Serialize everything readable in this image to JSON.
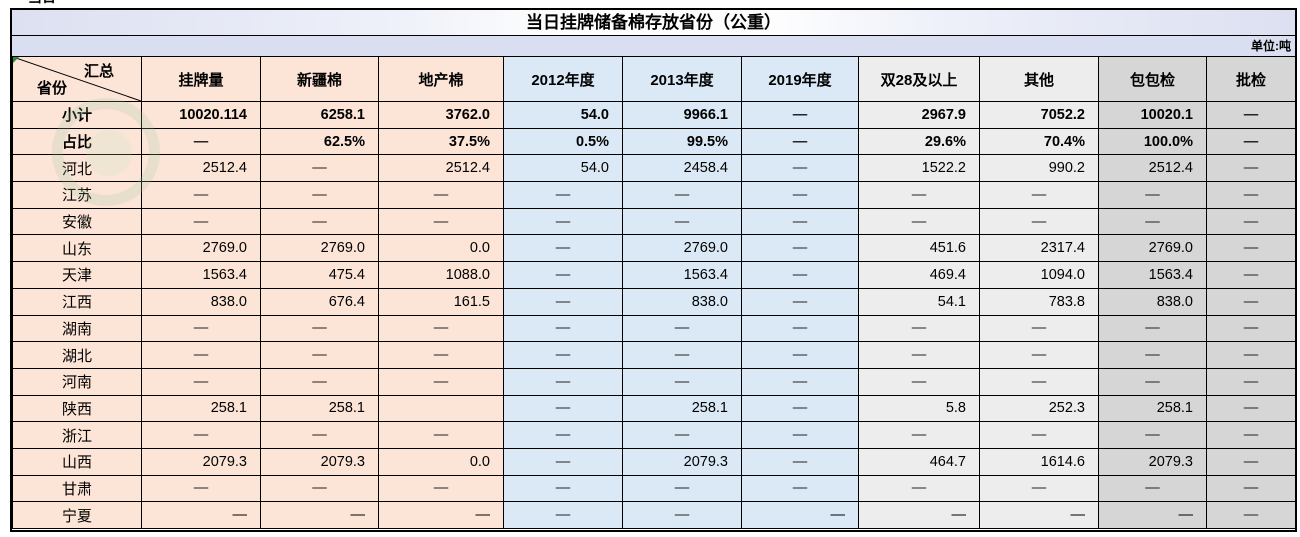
{
  "header": {
    "title": "当日挂牌储备棉存放省份（公重）",
    "unit_note": "单位:吨"
  },
  "corner": {
    "top": "汇总",
    "bottom": "省份"
  },
  "colors": {
    "orange": "#fce4d6",
    "blue": "#dbe9f6",
    "gray": "#ededed",
    "darkgray": "#d6d6d6",
    "band": "#d9def0",
    "border": "#000000",
    "corner_marker_green": "#2e8b3a"
  },
  "table": {
    "columns": [
      {
        "label": "挂牌量",
        "group": "orange"
      },
      {
        "label": "新疆棉",
        "group": "orange"
      },
      {
        "label": "地产棉",
        "group": "orange"
      },
      {
        "label": "2012年度",
        "group": "blue"
      },
      {
        "label": "2013年度",
        "group": "blue"
      },
      {
        "label": "2019年度",
        "group": "blue"
      },
      {
        "label": "双28及以上",
        "group": "gray"
      },
      {
        "label": "其他",
        "group": "gray"
      },
      {
        "label": "包包检",
        "group": "darkgray"
      },
      {
        "label": "批检",
        "group": "darkgray"
      }
    ],
    "rows": [
      {
        "name": "小计",
        "bold": true,
        "values": [
          "10020.114",
          "6258.1",
          "3762.0",
          "54.0",
          "9966.1",
          "—",
          "2967.9",
          "7052.2",
          "10020.1",
          "—"
        ]
      },
      {
        "name": "占比",
        "bold": true,
        "values": [
          "—",
          "62.5%",
          "37.5%",
          "0.5%",
          "99.5%",
          "—",
          "29.6%",
          "70.4%",
          "100.0%",
          "—"
        ]
      },
      {
        "name": "河北",
        "values": [
          "2512.4",
          "—",
          "2512.4",
          "54.0",
          "2458.4",
          "—",
          "1522.2",
          "990.2",
          "2512.4",
          "—"
        ]
      },
      {
        "name": "江苏",
        "values": [
          "—",
          "—",
          "—",
          "—",
          "—",
          "—",
          "—",
          "—",
          "—",
          "—"
        ]
      },
      {
        "name": "安徽",
        "values": [
          "—",
          "—",
          "—",
          "—",
          "—",
          "—",
          "—",
          "—",
          "—",
          "—"
        ]
      },
      {
        "name": "山东",
        "values": [
          "2769.0",
          "2769.0",
          "0.0",
          "—",
          "2769.0",
          "—",
          "451.6",
          "2317.4",
          "2769.0",
          "—"
        ]
      },
      {
        "name": "天津",
        "values": [
          "1563.4",
          "475.4",
          "1088.0",
          "—",
          "1563.4",
          "—",
          "469.4",
          "1094.0",
          "1563.4",
          "—"
        ]
      },
      {
        "name": "江西",
        "values": [
          "838.0",
          "676.4",
          "161.5",
          "—",
          "838.0",
          "—",
          "54.1",
          "783.8",
          "838.0",
          "—"
        ]
      },
      {
        "name": "湖南",
        "values": [
          "—",
          "—",
          "—",
          "—",
          "—",
          "—",
          "—",
          "—",
          "—",
          "—"
        ]
      },
      {
        "name": "湖北",
        "values": [
          "—",
          "—",
          "—",
          "—",
          "—",
          "—",
          "—",
          "—",
          "—",
          "—"
        ]
      },
      {
        "name": "河南",
        "values": [
          "—",
          "—",
          "—",
          "—",
          "—",
          "—",
          "—",
          "—",
          "—",
          "—"
        ]
      },
      {
        "name": "陕西",
        "values": [
          "258.1",
          "258.1",
          "",
          "—",
          "258.1",
          "—",
          "5.8",
          "252.3",
          "258.1",
          "—"
        ]
      },
      {
        "name": "浙江",
        "values": [
          "—",
          "—",
          "—",
          "—",
          "—",
          "—",
          "—",
          "—",
          "—",
          "—"
        ]
      },
      {
        "name": "山西",
        "values": [
          "2079.3",
          "2079.3",
          "0.0",
          "—",
          "2079.3",
          "—",
          "464.7",
          "1614.6",
          "2079.3",
          "—"
        ]
      },
      {
        "name": "甘肃",
        "values": [
          "—",
          "—",
          "—",
          "—",
          "—",
          "—",
          "—",
          "—",
          "—",
          "—"
        ]
      },
      {
        "name": "宁夏",
        "dash_align": "right",
        "dash_center_indices": [
          3,
          4,
          9
        ],
        "values": [
          "—",
          "—",
          "—",
          "—",
          "—",
          "—",
          "—",
          "—",
          "—",
          "—"
        ]
      }
    ]
  }
}
